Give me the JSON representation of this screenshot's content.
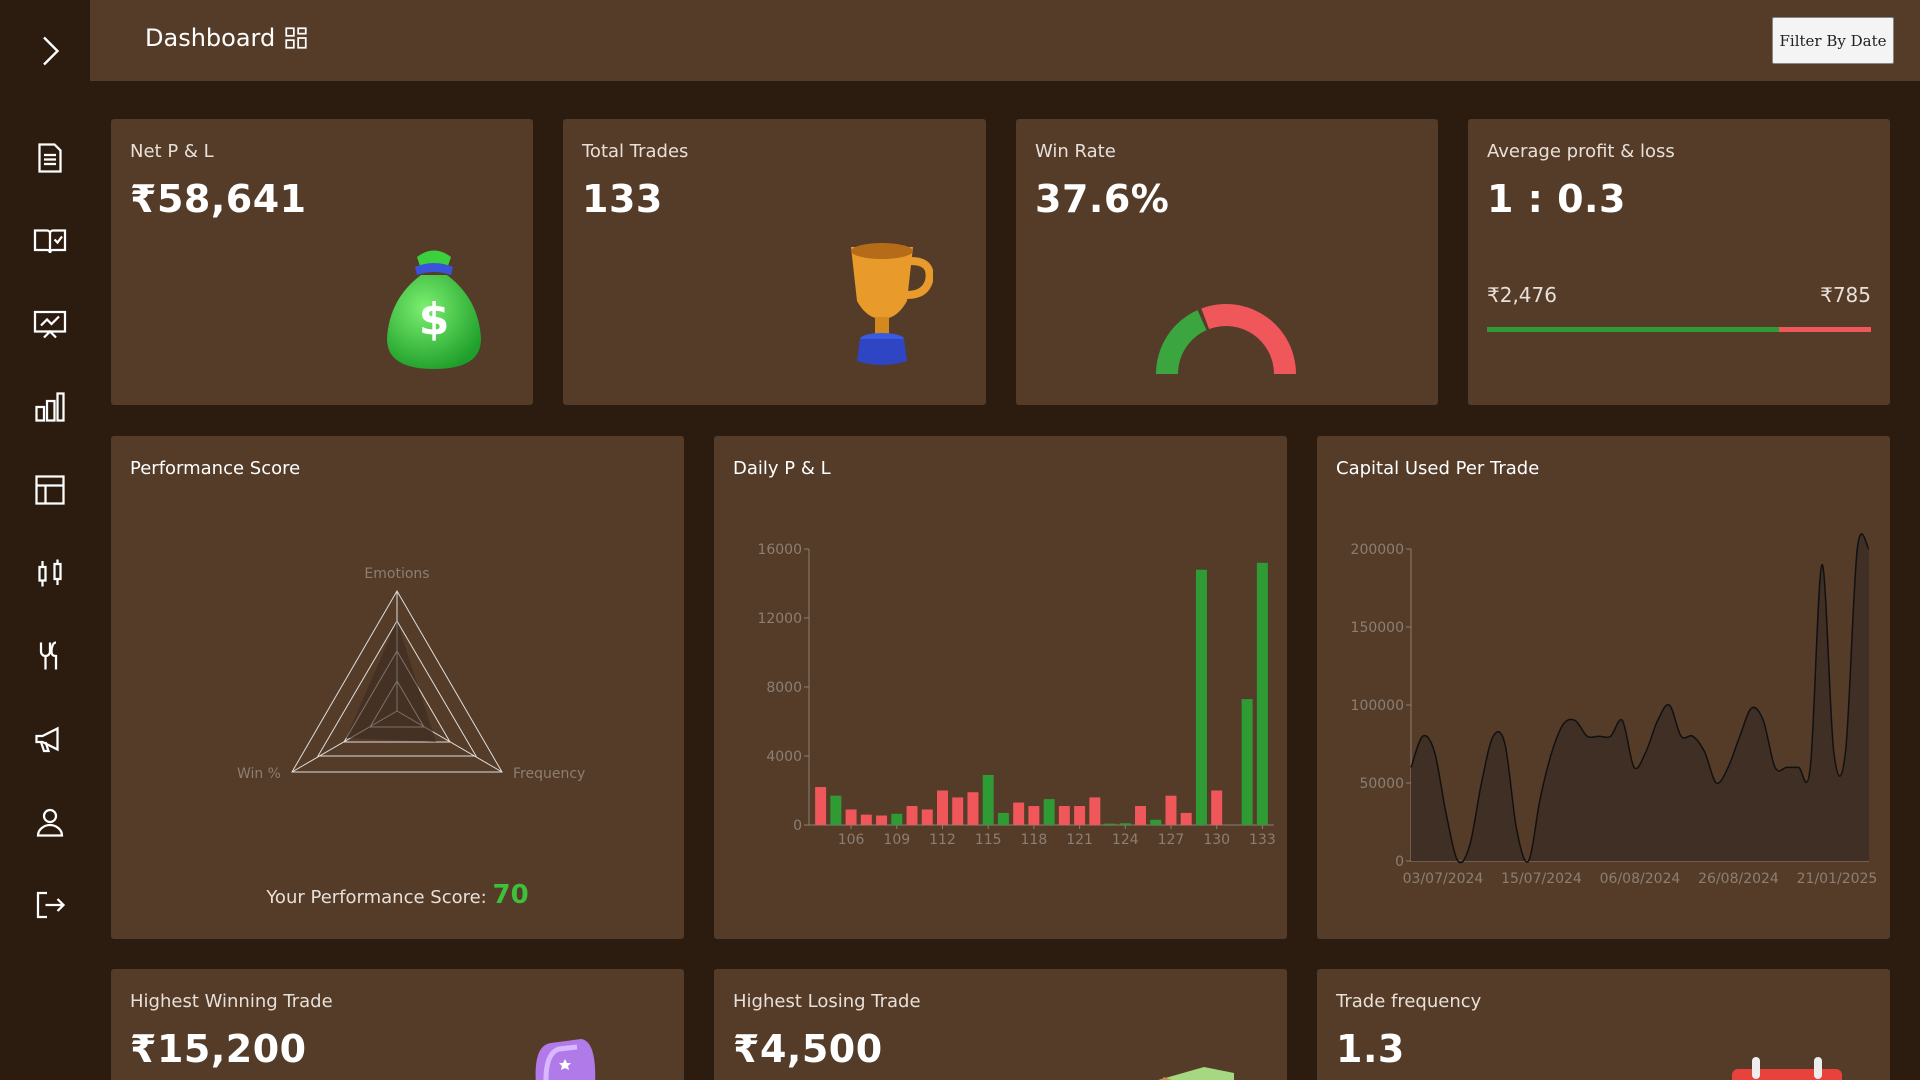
{
  "header": {
    "title": "Dashboard",
    "filter_label": "Filter By Date"
  },
  "sidebar": {
    "icons": [
      "chevron-right-icon",
      "document-icon",
      "journal-icon",
      "presentation-icon",
      "bar-chart-icon",
      "table-icon",
      "candlestick-icon",
      "tools-icon",
      "megaphone-icon",
      "user-icon",
      "logout-icon"
    ]
  },
  "stats": {
    "net_pl": {
      "label": "Net P & L",
      "value": "₹58,641"
    },
    "total_trades": {
      "label": "Total Trades",
      "value": "133"
    },
    "win_rate": {
      "label": "Win Rate",
      "value": "37.6%",
      "win_fraction": 0.376
    },
    "avg_pl": {
      "label": "Average profit & loss",
      "value": "1 : 0.3",
      "avg_profit": "₹2,476",
      "avg_loss": "₹785",
      "profit_fraction": 0.76
    }
  },
  "performance": {
    "title": "Performance Score",
    "score_label": "Your Performance Score:",
    "score": "70",
    "axes": [
      "Emotions",
      "Frequency",
      "Win %"
    ]
  },
  "daily_pl": {
    "title": "Daily P & L"
  },
  "capital": {
    "title": "Capital Used Per Trade"
  },
  "bottom": {
    "highest_win": {
      "label": "Highest Winning Trade",
      "value": "₹15,200"
    },
    "highest_loss": {
      "label": "Highest Losing Trade",
      "value": "₹4,500"
    },
    "frequency": {
      "label": "Trade frequency",
      "value": "1.3"
    }
  },
  "colors": {
    "bg": "#2c1c10",
    "card": "#553c29",
    "profit": "#2e9b34",
    "loss": "#f0575b"
  },
  "chart_data": [
    {
      "type": "bar",
      "title": "Daily P & L",
      "x": [
        104,
        105,
        106,
        107,
        108,
        109,
        110,
        111,
        112,
        113,
        114,
        115,
        116,
        117,
        118,
        119,
        120,
        121,
        122,
        123,
        124,
        125,
        126,
        127,
        128,
        129,
        130,
        131,
        132,
        133
      ],
      "values": [
        2200,
        1700,
        900,
        600,
        550,
        650,
        1100,
        900,
        2000,
        1600,
        1900,
        2900,
        700,
        1300,
        1100,
        1500,
        1100,
        1100,
        1600,
        80,
        100,
        1100,
        300,
        1700,
        700,
        14800,
        2000,
        0,
        7300,
        15200
      ],
      "colors": [
        "loss",
        "profit",
        "loss",
        "loss",
        "loss",
        "profit",
        "loss",
        "loss",
        "loss",
        "loss",
        "loss",
        "profit",
        "profit",
        "loss",
        "loss",
        "profit",
        "loss",
        "loss",
        "loss",
        "profit",
        "profit",
        "loss",
        "profit",
        "loss",
        "loss",
        "profit",
        "loss",
        "profit",
        "profit",
        "profit"
      ],
      "xticks": [
        106,
        109,
        112,
        115,
        118,
        121,
        124,
        127,
        130,
        133
      ],
      "yticks": [
        0,
        4000,
        8000,
        12000,
        16000
      ],
      "ylim": [
        0,
        16000
      ]
    },
    {
      "type": "area",
      "title": "Capital Used Per Trade",
      "values": [
        60000,
        80000,
        70000,
        30000,
        0,
        10000,
        50000,
        80000,
        75000,
        20000,
        0,
        40000,
        70000,
        88000,
        90000,
        80000,
        80000,
        80000,
        90000,
        60000,
        70000,
        90000,
        100000,
        80000,
        80000,
        70000,
        50000,
        60000,
        80000,
        98000,
        90000,
        60000,
        60000,
        60000,
        60000,
        190000,
        70000,
        70000,
        200000,
        200000
      ],
      "xticks": [
        "03/07/2024",
        "15/07/2024",
        "06/08/2024",
        "26/08/2024",
        "21/01/2025"
      ],
      "yticks": [
        0,
        50000,
        100000,
        150000,
        200000
      ],
      "ylim": [
        0,
        200000
      ]
    }
  ]
}
